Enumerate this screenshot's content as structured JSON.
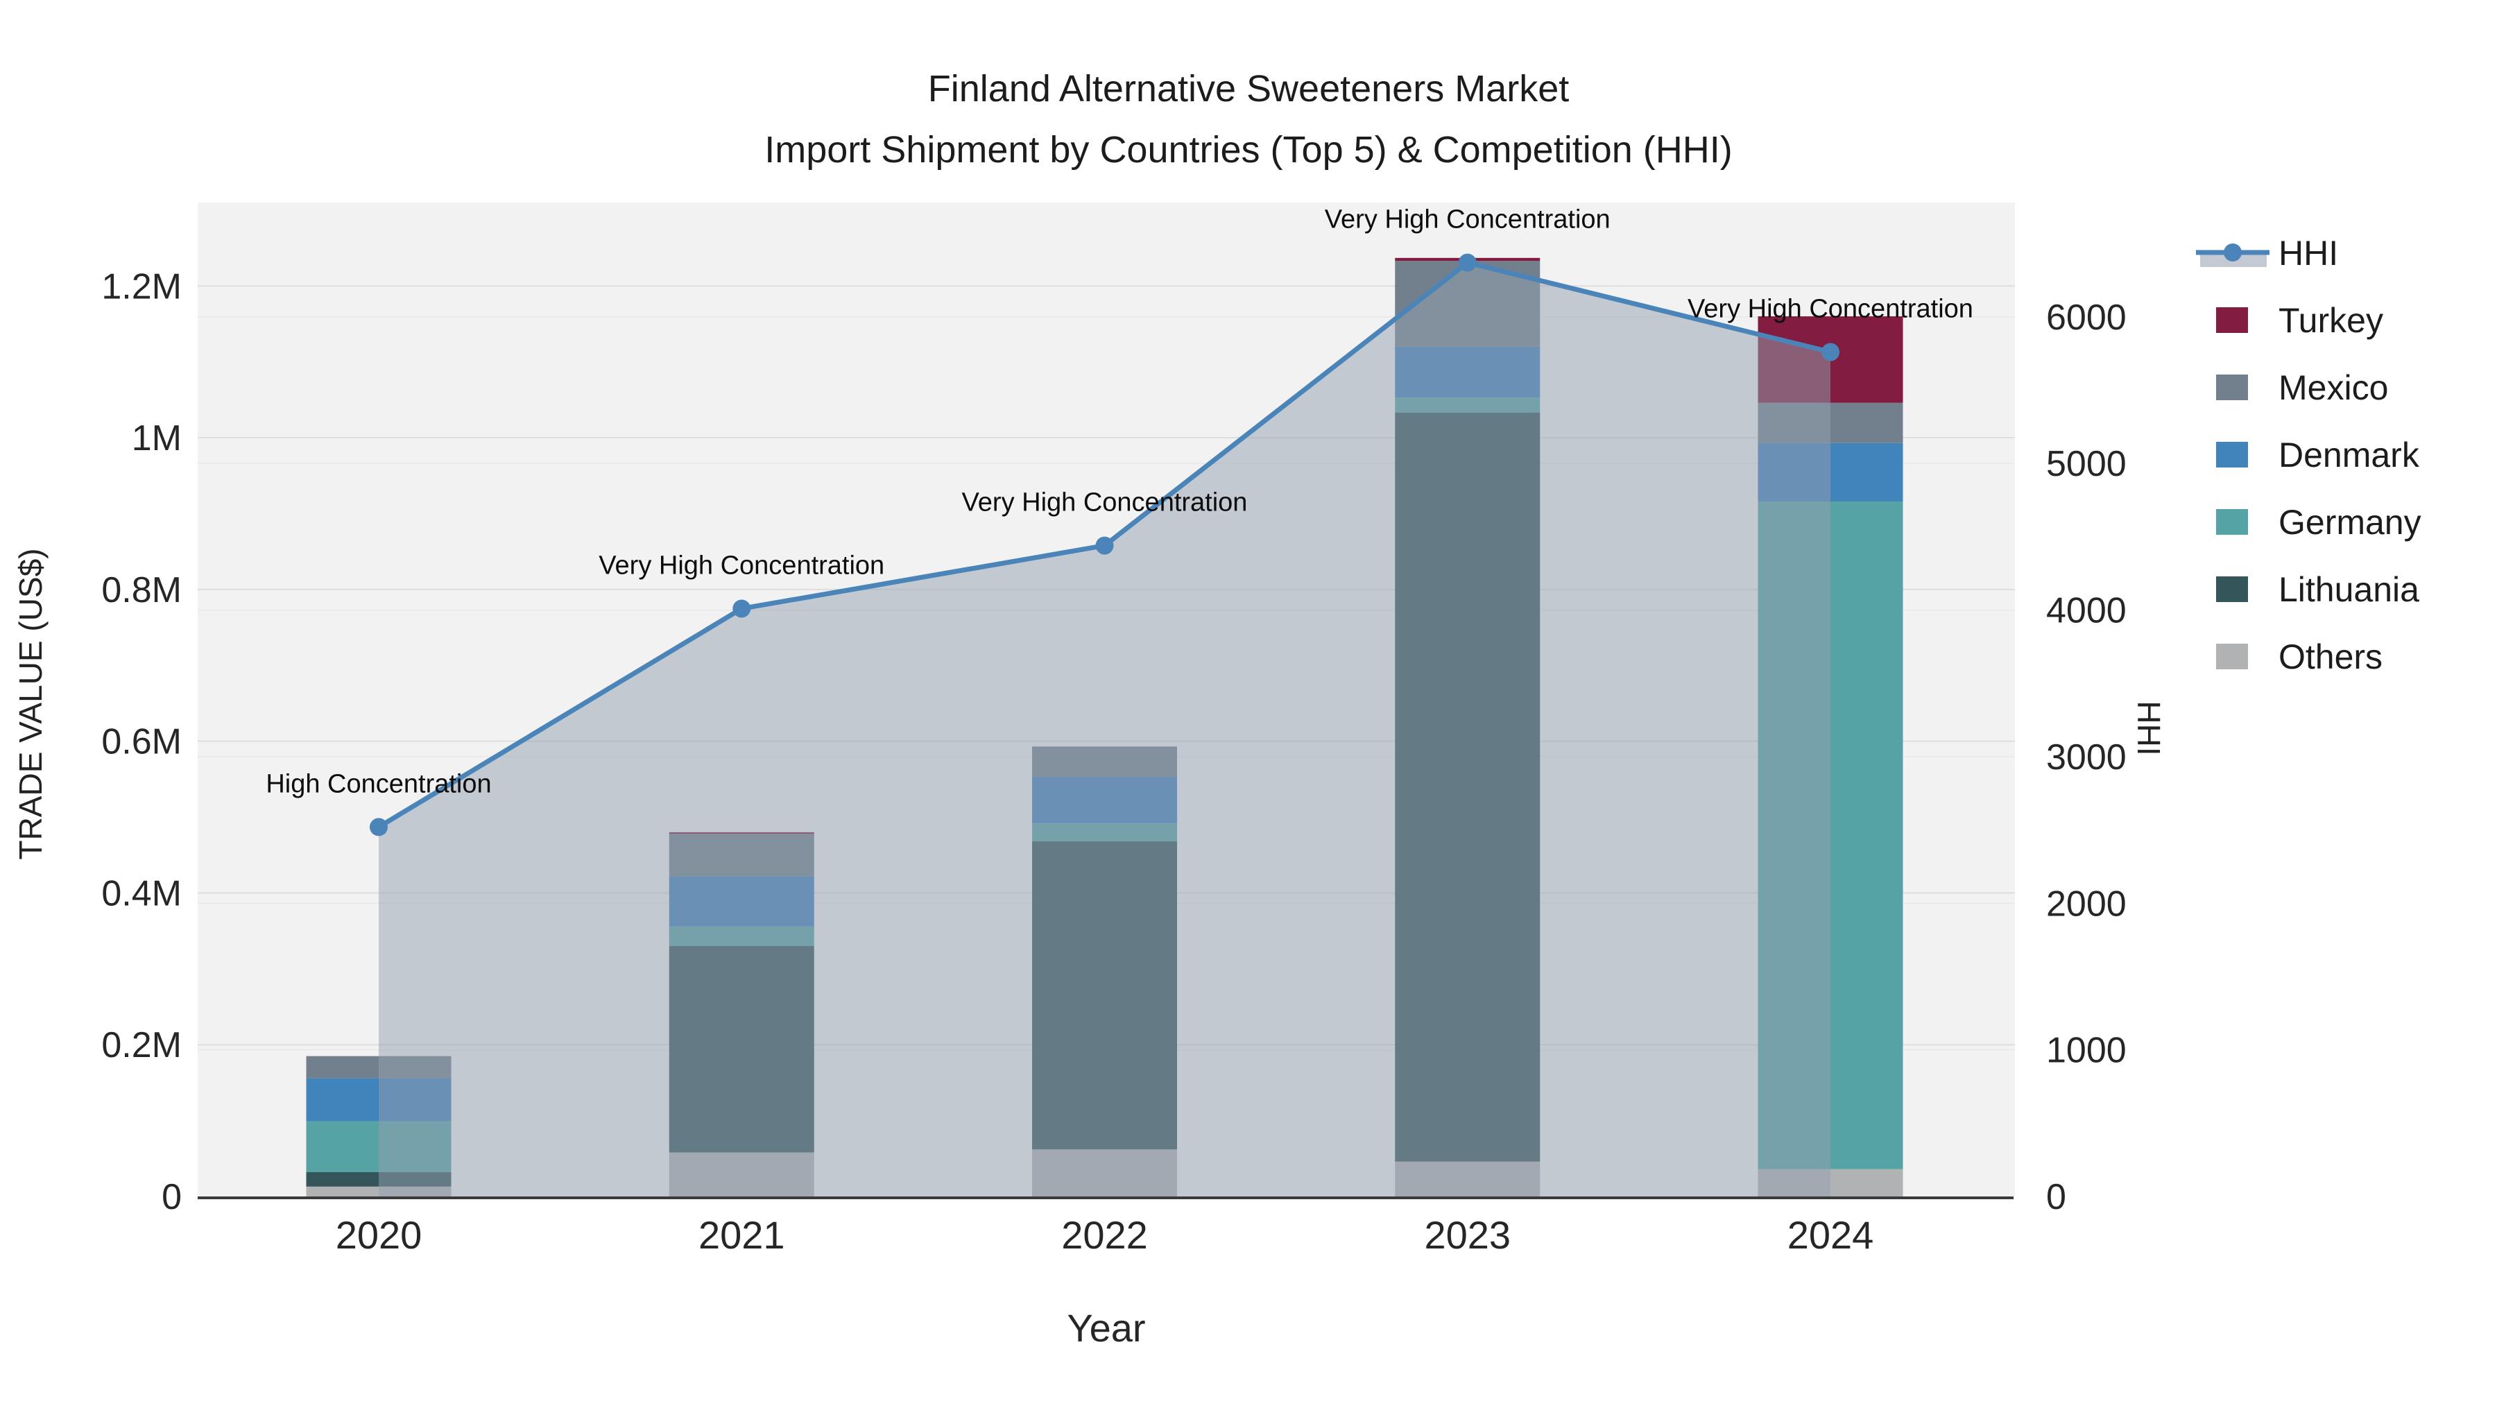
{
  "title": {
    "line1": "Finland Alternative Sweeteners Market",
    "line2": "Import Shipment by Countries (Top 5) & Competition (HHI)"
  },
  "axes": {
    "x_title": "Year",
    "y_left_title": "TRADE VALUE (US$)",
    "y_right_title": "HHI",
    "x_ticks": [
      "2020",
      "2021",
      "2022",
      "2023",
      "2024"
    ],
    "y_left_ticks": [
      {
        "label": "0",
        "value": 0
      },
      {
        "label": "0.2M",
        "value": 200000
      },
      {
        "label": "0.4M",
        "value": 400000
      },
      {
        "label": "0.6M",
        "value": 600000
      },
      {
        "label": "0.8M",
        "value": 800000
      },
      {
        "label": "1M",
        "value": 1000000
      },
      {
        "label": "1.2M",
        "value": 1200000
      }
    ],
    "y_right_ticks": [
      {
        "label": "0",
        "value": 0
      },
      {
        "label": "1000",
        "value": 1000
      },
      {
        "label": "2000",
        "value": 2000
      },
      {
        "label": "3000",
        "value": 3000
      },
      {
        "label": "4000",
        "value": 4000
      },
      {
        "label": "5000",
        "value": 5000
      },
      {
        "label": "6000",
        "value": 6000
      }
    ]
  },
  "legend": {
    "items": [
      {
        "label": "HHI",
        "type": "line",
        "color": "#4a84b8",
        "fill": "#c4cad3"
      },
      {
        "label": "Turkey",
        "type": "swatch",
        "color": "#821c40"
      },
      {
        "label": "Mexico",
        "type": "swatch",
        "color": "#72808d"
      },
      {
        "label": "Denmark",
        "type": "swatch",
        "color": "#4183bb"
      },
      {
        "label": "Germany",
        "type": "swatch",
        "color": "#55a3a4"
      },
      {
        "label": "Lithuania",
        "type": "swatch",
        "color": "#34555a"
      },
      {
        "label": "Others",
        "type": "swatch",
        "color": "#b0b2b4"
      }
    ]
  },
  "chart_data": {
    "type": "combo_stacked_bar_line",
    "x": [
      "2020",
      "2021",
      "2022",
      "2023",
      "2024"
    ],
    "bar_unit": "US$",
    "bar_stack_order_bottom_to_top": [
      "Others",
      "Lithuania",
      "Germany",
      "Denmark",
      "Mexico",
      "Turkey"
    ],
    "bar_series": [
      {
        "name": "Others",
        "color": "#b0b2b4",
        "values": [
          13000,
          58000,
          62000,
          46000,
          36000
        ]
      },
      {
        "name": "Lithuania",
        "color": "#34555a",
        "values": [
          19000,
          272000,
          406000,
          987000,
          0
        ]
      },
      {
        "name": "Germany",
        "color": "#55a3a4",
        "values": [
          67000,
          26000,
          24000,
          20000,
          880000
        ]
      },
      {
        "name": "Denmark",
        "color": "#4183bb",
        "values": [
          57000,
          66000,
          61000,
          67000,
          77000
        ]
      },
      {
        "name": "Mexico",
        "color": "#72808d",
        "values": [
          29000,
          56000,
          40000,
          113000,
          53000
        ]
      },
      {
        "name": "Turkey",
        "color": "#821c40",
        "values": [
          0,
          2000,
          0,
          4000,
          114000
        ]
      }
    ],
    "bar_totals": [
      185000,
      480000,
      593000,
      1237000,
      1160000
    ],
    "line_series": {
      "name": "HHI",
      "axis": "right",
      "color": "#4a84b8",
      "fill_color": "rgba(148,159,176,0.5)",
      "values": [
        2520,
        4010,
        4440,
        6370,
        5760
      ]
    },
    "annotations": [
      {
        "x": "2020",
        "text": "High Concentration"
      },
      {
        "x": "2021",
        "text": "Very High Concentration"
      },
      {
        "x": "2022",
        "text": "Very High Concentration"
      },
      {
        "x": "2023",
        "text": "Very High Concentration"
      },
      {
        "x": "2024",
        "text": "Very High Concentration"
      }
    ],
    "xlabel": "Year",
    "ylabel_left": "TRADE VALUE (US$)",
    "ylabel_right": "HHI",
    "y_left_range": [
      0,
      1310000
    ],
    "y_right_range": [
      0,
      6780
    ],
    "grid": true,
    "legend_position": "right"
  },
  "colors": {
    "plot_bg": "#f2f2f2",
    "figure_bg": "#ffffff",
    "grid_left": "#dedede",
    "grid_right": "#eaeaea",
    "axis_line": "#3b3b3b",
    "text": "#222222"
  }
}
